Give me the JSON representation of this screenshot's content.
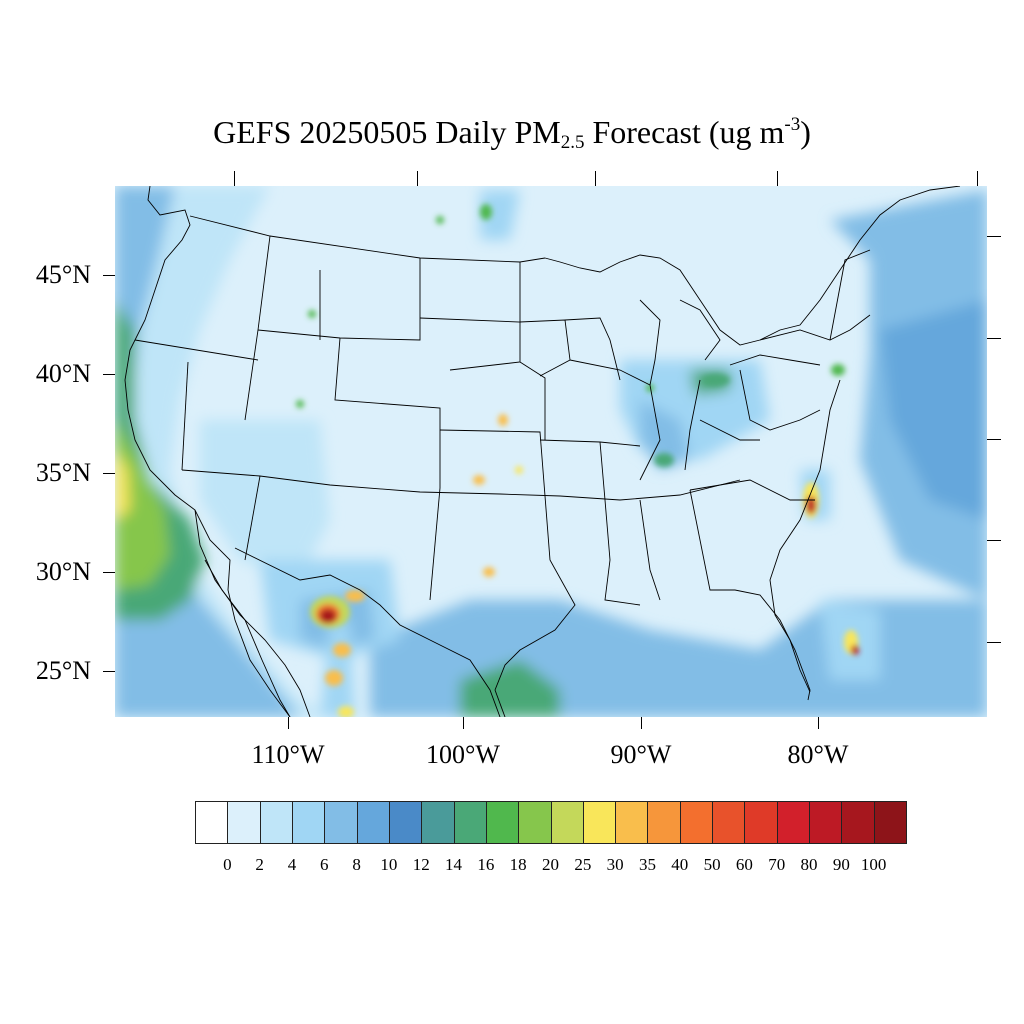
{
  "title": {
    "prefix": "GEFS 20250505 Daily PM",
    "pm_sub": "2.5",
    "middle": " Forecast (ug m",
    "exponent": "-3",
    "suffix": ")"
  },
  "map": {
    "projection": "Lambert conformal, contiguous United States",
    "lat_labels": [
      "45°N",
      "40°N",
      "35°N",
      "30°N",
      "25°N"
    ],
    "lon_labels": [
      "110°W",
      "100°W",
      "90°W",
      "80°W"
    ],
    "background_color": "#dcf0fb",
    "boundary_color": "#000000",
    "hotspots": [
      {
        "region": "Western Mexico (Chihuahua)",
        "level": "90-100"
      },
      {
        "region": "Eastern North Carolina coast",
        "level": "80-90"
      },
      {
        "region": "Southern Florida / Bahamas",
        "level": "30-40"
      },
      {
        "region": "Pacific off Baja California",
        "level": "25-30"
      },
      {
        "region": "Gulf of Mexico near Veracruz",
        "level": "16-18"
      }
    ]
  },
  "colorbar": {
    "colors": [
      "#ffffff",
      "#dcf0fb",
      "#bfe5f8",
      "#a0d6f4",
      "#82bde6",
      "#65a7dc",
      "#4a8ac8",
      "#4a9b9a",
      "#4aa877",
      "#50b84d",
      "#86c64c",
      "#c4d85a",
      "#f9e65a",
      "#f9be4c",
      "#f6963b",
      "#f36f2e",
      "#e8522b",
      "#df3a28",
      "#d2202b",
      "#bd1a25",
      "#a6171e",
      "#8d1419"
    ],
    "labels": [
      "0",
      "2",
      "4",
      "6",
      "8",
      "10",
      "12",
      "14",
      "16",
      "18",
      "20",
      "25",
      "30",
      "35",
      "40",
      "50",
      "60",
      "70",
      "80",
      "90",
      "100"
    ]
  }
}
